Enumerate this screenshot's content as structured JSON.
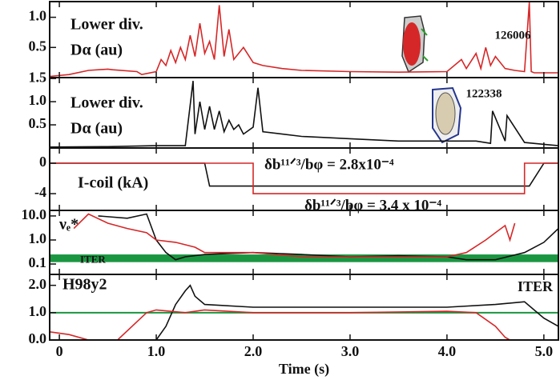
{
  "chart_data": [
    {
      "type": "line",
      "label": [
        "Lower div.",
        "Dα (au)"
      ],
      "xlim": [
        -0.1,
        5.15
      ],
      "ylim": [
        0,
        1.26
      ],
      "yticks": [
        0.5,
        {
          "value": 1.0,
          "label": "1.0"
        }
      ],
      "series": [
        {
          "name": "126006",
          "color": "#d62728",
          "x": [
            -0.1,
            0.1,
            0.3,
            0.5,
            0.55,
            0.8,
            0.85,
            1.0,
            1.05,
            1.1,
            1.15,
            1.2,
            1.25,
            1.3,
            1.35,
            1.4,
            1.45,
            1.5,
            1.55,
            1.6,
            1.65,
            1.7,
            1.75,
            1.8,
            1.9,
            2.0,
            2.1,
            2.3,
            2.5,
            3.0,
            3.5,
            4.0,
            4.15,
            4.2,
            4.3,
            4.35,
            4.4,
            4.45,
            4.5,
            4.6,
            4.7,
            4.8,
            4.85,
            4.87,
            4.9,
            5.15
          ],
          "values": [
            0.02,
            0.05,
            0.12,
            0.14,
            0.13,
            0.1,
            0.05,
            0.1,
            0.3,
            0.2,
            0.45,
            0.25,
            0.5,
            0.3,
            0.7,
            0.35,
            0.9,
            0.4,
            0.6,
            0.3,
            1.2,
            0.35,
            0.8,
            0.3,
            0.5,
            0.25,
            0.2,
            0.15,
            0.12,
            0.1,
            0.09,
            0.1,
            0.3,
            0.15,
            0.4,
            0.15,
            0.5,
            0.2,
            0.35,
            0.15,
            0.12,
            0.1,
            1.25,
            0.1,
            0.08,
            0.08
          ]
        }
      ]
    },
    {
      "type": "line",
      "label": [
        "Lower div.",
        "Dα (au)"
      ],
      "xlim": [
        -0.1,
        5.15
      ],
      "ylim": [
        0,
        1.52
      ],
      "yticks": [
        0.5,
        {
          "value": 1.0,
          "label": "1.0"
        },
        1.5
      ],
      "series": [
        {
          "name": "122338",
          "color": "#111111",
          "x": [
            -0.1,
            0.5,
            1.0,
            1.3,
            1.38,
            1.4,
            1.45,
            1.5,
            1.55,
            1.6,
            1.65,
            1.7,
            1.75,
            1.8,
            1.85,
            1.9,
            2.0,
            2.05,
            2.1,
            2.3,
            2.5,
            3.0,
            3.5,
            4.0,
            4.3,
            4.45,
            4.47,
            4.6,
            4.62,
            4.8,
            5.0,
            5.15
          ],
          "values": [
            0.02,
            0.03,
            0.05,
            0.05,
            1.45,
            0.3,
            1.0,
            0.4,
            0.9,
            0.4,
            0.8,
            0.35,
            0.6,
            0.4,
            0.5,
            0.3,
            0.45,
            1.3,
            0.35,
            0.3,
            0.25,
            0.2,
            0.15,
            0.15,
            0.15,
            0.1,
            0.8,
            0.15,
            0.7,
            0.12,
            0.08,
            0.05
          ]
        }
      ]
    },
    {
      "type": "line",
      "label": [
        "I-coil (kA)"
      ],
      "xlim": [
        -0.1,
        5.15
      ],
      "ylim": [
        -6.2,
        2.0
      ],
      "yticks": [
        -4,
        0
      ],
      "annotations": [
        {
          "text": "δb¹¹ᐟ³/bφ = 2.8x10⁻⁴",
          "color": "#111111"
        },
        {
          "text": "δb¹¹ᐟ³/bφ = 3.4 x 10⁻⁴",
          "color": "#d62728"
        }
      ],
      "series": [
        {
          "color": "#111111",
          "x": [
            -0.1,
            1.5,
            1.55,
            4.85,
            5.0,
            5.15
          ],
          "values": [
            0,
            0,
            -3,
            -3,
            0,
            0
          ]
        },
        {
          "color": "#d62728",
          "x": [
            -0.1,
            2.0,
            2.0,
            4.8,
            4.8,
            5.15
          ],
          "values": [
            0,
            0,
            -4,
            -4,
            0,
            0
          ]
        }
      ]
    },
    {
      "type": "line",
      "label": [
        "νₑ*"
      ],
      "log": true,
      "xlim": [
        -0.1,
        5.15
      ],
      "ylim": [
        0.037,
        17
      ],
      "yticks": [
        0.1,
        {
          "value": 1.0,
          "label": "1.0"
        },
        {
          "value": 10.0,
          "label": "10.0"
        }
      ],
      "shaded_band": {
        "label": "ITER",
        "range": [
          0.12,
          0.25
        ],
        "color": "#1a9641"
      },
      "series": [
        {
          "color": "#111111",
          "x": [
            0.4,
            0.7,
            0.9,
            1.0,
            1.1,
            1.2,
            1.3,
            1.5,
            2.0,
            2.5,
            3.0,
            3.5,
            4.0,
            4.2,
            4.5,
            4.8,
            5.0,
            5.15
          ],
          "values": [
            10,
            8,
            12,
            1,
            0.3,
            0.15,
            0.2,
            0.25,
            0.3,
            0.25,
            0.2,
            0.22,
            0.2,
            0.15,
            0.15,
            0.3,
            0.8,
            3
          ]
        },
        {
          "color": "#d62728",
          "x": [
            0.15,
            0.3,
            0.5,
            0.7,
            0.9,
            1.0,
            1.2,
            1.4,
            1.5,
            2.0,
            2.5,
            3.0,
            3.5,
            4.0,
            4.2,
            4.4,
            4.5,
            4.6,
            4.65,
            4.7
          ],
          "values": [
            3,
            12,
            5,
            3,
            2,
            1,
            0.8,
            0.5,
            0.3,
            0.3,
            0.2,
            0.2,
            0.2,
            0.2,
            0.3,
            1,
            2,
            4,
            1,
            5
          ]
        }
      ]
    },
    {
      "type": "line",
      "label": [
        "H98y2"
      ],
      "xlim": [
        -0.1,
        5.15
      ],
      "ylim": [
        0,
        2.4
      ],
      "yticks": [
        {
          "value": 0.0,
          "label": "0.0"
        },
        {
          "value": 1.0,
          "label": "1.0"
        },
        {
          "value": 2.0,
          "label": "2.0"
        }
      ],
      "xticks": [
        0,
        {
          "value": 1,
          "label": "1.0"
        },
        {
          "value": 2,
          "label": "2.0"
        },
        {
          "value": 3,
          "label": "3.0"
        },
        {
          "value": 4,
          "label": "4.0"
        },
        {
          "value": 5,
          "label": "5.0"
        }
      ],
      "xlabel": "Time (s)",
      "reference_line": {
        "label": "ITER",
        "value": 1.0,
        "color": "#1a9641"
      },
      "series": [
        {
          "color": "#111111",
          "x": [
            1.0,
            1.1,
            1.2,
            1.3,
            1.35,
            1.4,
            1.5,
            2.0,
            2.5,
            3.0,
            3.5,
            4.0,
            4.5,
            4.8,
            5.0,
            5.15
          ],
          "values": [
            0,
            0.5,
            1.3,
            1.8,
            2.0,
            1.6,
            1.3,
            1.2,
            1.2,
            1.2,
            1.2,
            1.2,
            1.3,
            1.4,
            0.8,
            0.5
          ]
        },
        {
          "color": "#d62728",
          "x": [
            -0.1,
            0.1,
            0.3,
            0.6,
            0.9,
            1.0,
            1.3,
            1.5,
            2.0,
            3.0,
            4.0,
            4.3,
            4.5,
            4.6,
            4.65
          ],
          "values": [
            0.3,
            0.2,
            0,
            0,
            1.0,
            1.1,
            1.0,
            1.1,
            1.0,
            1.0,
            1.05,
            1.0,
            0.5,
            0.1,
            0
          ]
        }
      ]
    }
  ]
}
